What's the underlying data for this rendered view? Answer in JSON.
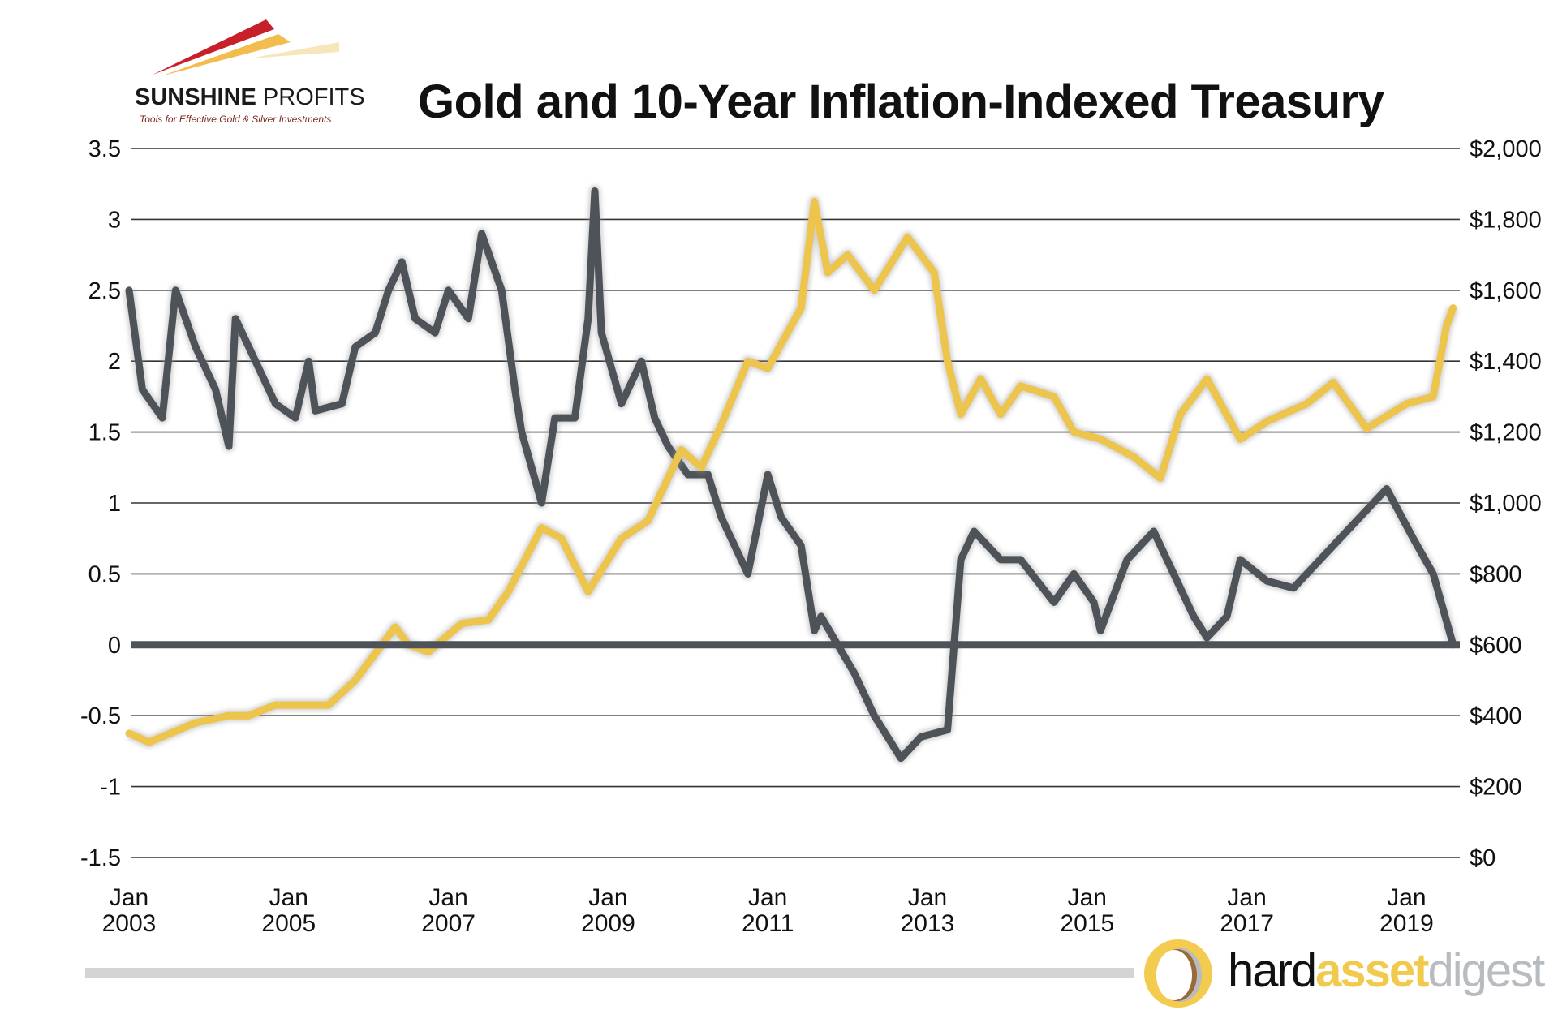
{
  "title": "Gold and 10-Year Inflation-Indexed Treasury",
  "logos": {
    "sunshine_profits": {
      "name_bold": "SUNSHINE",
      "name_light": "PROFITS",
      "tagline": "Tools for Effective Gold & Silver Investments"
    },
    "hard_asset_digest": {
      "part1": "hard",
      "part2": "asset",
      "part3": "digest"
    }
  },
  "colors": {
    "tips": "#4d5358",
    "gold": "#edc44c",
    "grid": "#333333"
  },
  "chart_data": {
    "type": "line",
    "title": "Gold and 10-Year Inflation-Indexed Treasury",
    "x_tick_labels": [
      [
        "Jan",
        "2003"
      ],
      [
        "Jan",
        "2005"
      ],
      [
        "Jan",
        "2007"
      ],
      [
        "Jan",
        "2009"
      ],
      [
        "Jan",
        "2011"
      ],
      [
        "Jan",
        "2013"
      ],
      [
        "Jan",
        "2015"
      ],
      [
        "Jan",
        "2017"
      ],
      [
        "Jan",
        "2019"
      ]
    ],
    "x_ticks": [
      "2003-01",
      "2005-01",
      "2007-01",
      "2009-01",
      "2011-01",
      "2013-01",
      "2015-01",
      "2017-01",
      "2019-01"
    ],
    "x_range": [
      "2003-01",
      "2019-08"
    ],
    "y_left": {
      "ticks": [
        3.5,
        3,
        2.5,
        2,
        1.5,
        1,
        0.5,
        0,
        -0.5,
        -1,
        -1.5
      ],
      "tick_labels": [
        "3.5",
        "3",
        "2.5",
        "2",
        "1.5",
        "1",
        "0.5",
        "0",
        "-0.5",
        "-1",
        "-1.5"
      ],
      "range": [
        -1.5,
        3.5
      ]
    },
    "y_right": {
      "ticks": [
        2000,
        1800,
        1600,
        1400,
        1200,
        1000,
        800,
        600,
        400,
        200,
        0
      ],
      "tick_labels": [
        "$2,000",
        "$1,800",
        "$1,600",
        "$1,400",
        "$1,200",
        "$1,000",
        "$800",
        "$600",
        "$400",
        "$200",
        "$0"
      ],
      "range": [
        0,
        2000
      ]
    },
    "grid": true,
    "series": [
      {
        "axis": "left",
        "color": "#4d5358",
        "points": [
          [
            "2003-01",
            2.5
          ],
          [
            "2003-03",
            1.8
          ],
          [
            "2003-06",
            1.6
          ],
          [
            "2003-08",
            2.5
          ],
          [
            "2003-11",
            2.1
          ],
          [
            "2004-02",
            1.8
          ],
          [
            "2004-04",
            1.4
          ],
          [
            "2004-05",
            2.3
          ],
          [
            "2004-08",
            2.0
          ],
          [
            "2004-11",
            1.7
          ],
          [
            "2005-02",
            1.6
          ],
          [
            "2005-04",
            2.0
          ],
          [
            "2005-05",
            1.65
          ],
          [
            "2005-09",
            1.7
          ],
          [
            "2005-11",
            2.1
          ],
          [
            "2006-02",
            2.2
          ],
          [
            "2006-04",
            2.5
          ],
          [
            "2006-06",
            2.7
          ],
          [
            "2006-08",
            2.3
          ],
          [
            "2006-11",
            2.2
          ],
          [
            "2007-01",
            2.5
          ],
          [
            "2007-04",
            2.3
          ],
          [
            "2007-06",
            2.9
          ],
          [
            "2007-09",
            2.5
          ],
          [
            "2007-11",
            1.8
          ],
          [
            "2007-12",
            1.5
          ],
          [
            "2008-03",
            1.0
          ],
          [
            "2008-05",
            1.6
          ],
          [
            "2008-08",
            1.6
          ],
          [
            "2008-10",
            2.3
          ],
          [
            "2008-11",
            3.2
          ],
          [
            "2008-12",
            2.2
          ],
          [
            "2009-03",
            1.7
          ],
          [
            "2009-06",
            2.0
          ],
          [
            "2009-08",
            1.6
          ],
          [
            "2009-10",
            1.4
          ],
          [
            "2010-01",
            1.2
          ],
          [
            "2010-04",
            1.2
          ],
          [
            "2010-06",
            0.9
          ],
          [
            "2010-10",
            0.5
          ],
          [
            "2011-01",
            1.2
          ],
          [
            "2011-03",
            0.9
          ],
          [
            "2011-06",
            0.7
          ],
          [
            "2011-08",
            0.1
          ],
          [
            "2011-09",
            0.2
          ],
          [
            "2012-02",
            -0.2
          ],
          [
            "2012-05",
            -0.5
          ],
          [
            "2012-09",
            -0.8
          ],
          [
            "2012-12",
            -0.65
          ],
          [
            "2013-04",
            -0.6
          ],
          [
            "2013-06",
            0.6
          ],
          [
            "2013-08",
            0.8
          ],
          [
            "2013-12",
            0.6
          ],
          [
            "2014-03",
            0.6
          ],
          [
            "2014-08",
            0.3
          ],
          [
            "2014-11",
            0.5
          ],
          [
            "2015-02",
            0.3
          ],
          [
            "2015-03",
            0.1
          ],
          [
            "2015-07",
            0.6
          ],
          [
            "2015-11",
            0.8
          ],
          [
            "2016-01",
            0.6
          ],
          [
            "2016-05",
            0.2
          ],
          [
            "2016-07",
            0.05
          ],
          [
            "2016-10",
            0.2
          ],
          [
            "2016-12",
            0.6
          ],
          [
            "2017-04",
            0.45
          ],
          [
            "2017-08",
            0.4
          ],
          [
            "2017-12",
            0.6
          ],
          [
            "2018-05",
            0.85
          ],
          [
            "2018-10",
            1.1
          ],
          [
            "2019-02",
            0.75
          ],
          [
            "2019-05",
            0.5
          ],
          [
            "2019-08",
            0.0
          ]
        ]
      },
      {
        "axis": "right",
        "color": "#edc44c",
        "points": [
          [
            "2003-01",
            350
          ],
          [
            "2003-04",
            325
          ],
          [
            "2003-11",
            380
          ],
          [
            "2004-04",
            400
          ],
          [
            "2004-07",
            400
          ],
          [
            "2004-11",
            430
          ],
          [
            "2005-02",
            430
          ],
          [
            "2005-07",
            430
          ],
          [
            "2005-11",
            500
          ],
          [
            "2006-05",
            650
          ],
          [
            "2006-07",
            600
          ],
          [
            "2006-10",
            580
          ],
          [
            "2007-03",
            660
          ],
          [
            "2007-07",
            670
          ],
          [
            "2007-10",
            750
          ],
          [
            "2008-03",
            930
          ],
          [
            "2008-06",
            900
          ],
          [
            "2008-10",
            750
          ],
          [
            "2009-03",
            900
          ],
          [
            "2009-07",
            950
          ],
          [
            "2009-12",
            1150
          ],
          [
            "2010-03",
            1100
          ],
          [
            "2010-06",
            1220
          ],
          [
            "2010-10",
            1400
          ],
          [
            "2011-01",
            1380
          ],
          [
            "2011-06",
            1550
          ],
          [
            "2011-08",
            1850
          ],
          [
            "2011-10",
            1650
          ],
          [
            "2012-01",
            1700
          ],
          [
            "2012-05",
            1600
          ],
          [
            "2012-10",
            1750
          ],
          [
            "2013-02",
            1650
          ],
          [
            "2013-04",
            1400
          ],
          [
            "2013-06",
            1250
          ],
          [
            "2013-09",
            1350
          ],
          [
            "2013-12",
            1250
          ],
          [
            "2014-03",
            1330
          ],
          [
            "2014-08",
            1300
          ],
          [
            "2014-11",
            1200
          ],
          [
            "2015-03",
            1180
          ],
          [
            "2015-08",
            1130
          ],
          [
            "2015-12",
            1070
          ],
          [
            "2016-03",
            1250
          ],
          [
            "2016-07",
            1350
          ],
          [
            "2016-12",
            1180
          ],
          [
            "2017-04",
            1230
          ],
          [
            "2017-10",
            1280
          ],
          [
            "2018-02",
            1340
          ],
          [
            "2018-07",
            1210
          ],
          [
            "2019-01",
            1280
          ],
          [
            "2019-05",
            1300
          ],
          [
            "2019-07",
            1500
          ],
          [
            "2019-08",
            1550
          ]
        ]
      }
    ]
  }
}
